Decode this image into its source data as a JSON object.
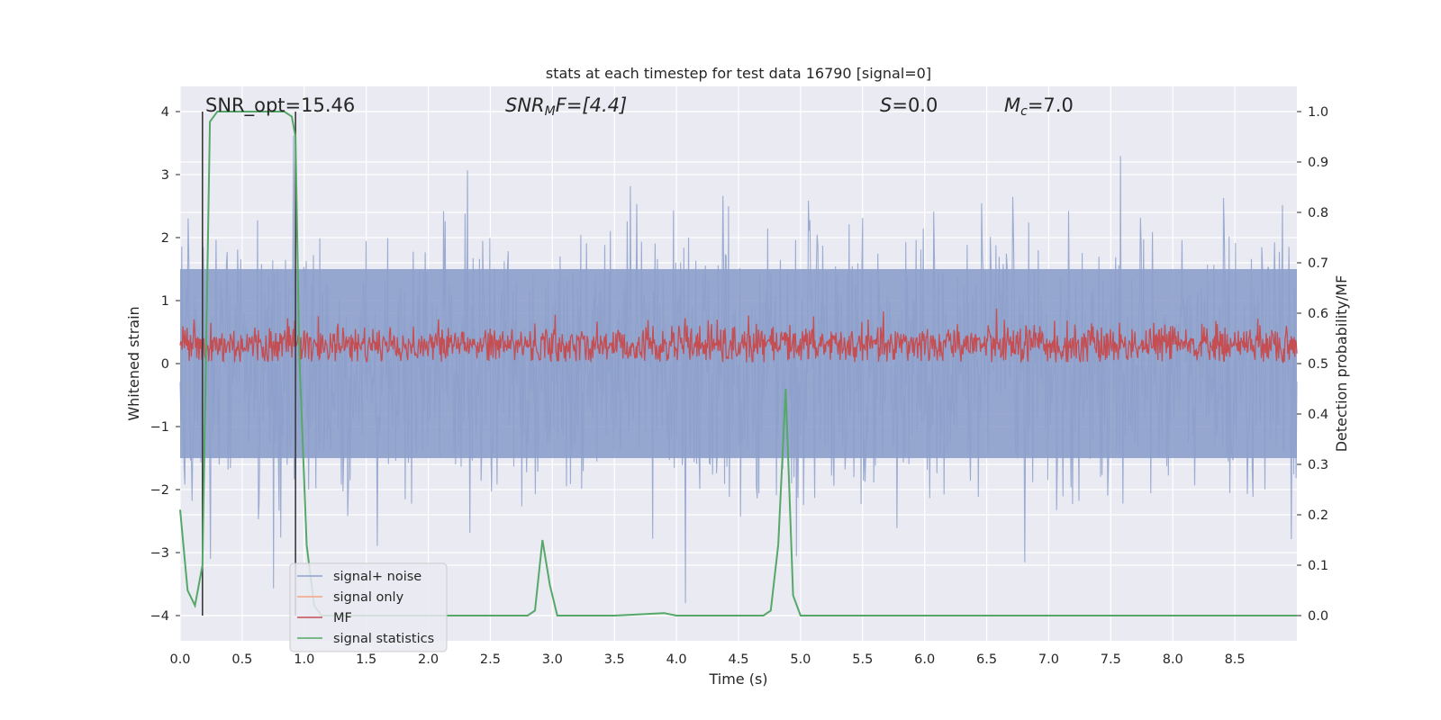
{
  "chart_data": {
    "type": "line",
    "title": "stats at each timestep for test data 16790 [signal=0]",
    "xlabel": "Time (s)",
    "ylabel": "Whitened strain",
    "ylabel_right": "Detection probability/MF",
    "xlim": [
      0.0,
      9.0
    ],
    "ylim": [
      -4.4,
      4.4
    ],
    "ylim_right": [
      -0.05,
      1.05
    ],
    "xticks": [
      "0.0",
      "0.5",
      "1.0",
      "1.5",
      "2.0",
      "2.5",
      "3.0",
      "3.5",
      "4.0",
      "4.5",
      "5.0",
      "5.5",
      "6.0",
      "6.5",
      "7.0",
      "7.5",
      "8.0",
      "8.5"
    ],
    "yticks": [
      "−4",
      "−3",
      "−2",
      "−1",
      "0",
      "1",
      "2",
      "3",
      "4"
    ],
    "yticks_right": [
      "0.0",
      "0.1",
      "0.2",
      "0.3",
      "0.4",
      "0.5",
      "0.6",
      "0.7",
      "0.8",
      "0.9",
      "1.0"
    ],
    "grid": true,
    "annotations": {
      "snr_opt": "SNR_opt=15.46",
      "snr_mf_main": "SNR",
      "snr_mf_sub": "M",
      "snr_mf_rest": "F=[4.4]",
      "s_main": "S",
      "s_rest": "=0.0",
      "mc_main": "M",
      "mc_sub": "c",
      "mc_rest": "=7.0"
    },
    "vlines_x": [
      0.18,
      0.93
    ],
    "series": [
      {
        "name": "signal+ noise",
        "color": "#8da0cb",
        "description": "noise band roughly symmetric about 0, peaks near ±3.8"
      },
      {
        "name": "signal only",
        "color": "#f4a582",
        "values": []
      },
      {
        "name": "MF",
        "color": "#c44e52",
        "description": "matched-filter output, range ~0 to 1.0 on left axis"
      },
      {
        "name": "signal statistics",
        "color": "#55a868",
        "axis": "right",
        "x": [
          0.0,
          0.06,
          0.12,
          0.18,
          0.24,
          0.3,
          0.36,
          0.42,
          0.48,
          0.54,
          0.6,
          0.66,
          0.72,
          0.78,
          0.84,
          0.9,
          0.93,
          0.96,
          1.02,
          1.08,
          1.14,
          1.2,
          1.5,
          2.0,
          2.5,
          2.8,
          2.86,
          2.92,
          2.98,
          3.04,
          3.1,
          3.5,
          3.9,
          4.0,
          4.5,
          4.7,
          4.76,
          4.82,
          4.88,
          4.94,
          5.0,
          5.5,
          6.0,
          7.0,
          8.0,
          9.0
        ],
        "values": [
          0.21,
          0.05,
          0.02,
          0.1,
          0.98,
          1.0,
          1.0,
          1.0,
          1.0,
          1.0,
          1.0,
          1.0,
          1.0,
          1.0,
          1.0,
          0.99,
          0.95,
          0.52,
          0.14,
          0.02,
          0.0,
          0.0,
          0.0,
          0.0,
          0.0,
          0.0,
          0.01,
          0.15,
          0.06,
          0.0,
          0.0,
          0.0,
          0.005,
          0.0,
          0.0,
          0.0,
          0.01,
          0.14,
          0.45,
          0.04,
          0.0,
          0.0,
          0.0,
          0.0,
          0.0,
          0.0
        ]
      }
    ],
    "legend": {
      "position": "lower-left",
      "entries": [
        "signal+ noise",
        "signal only",
        "MF",
        "signal statistics"
      ]
    }
  }
}
